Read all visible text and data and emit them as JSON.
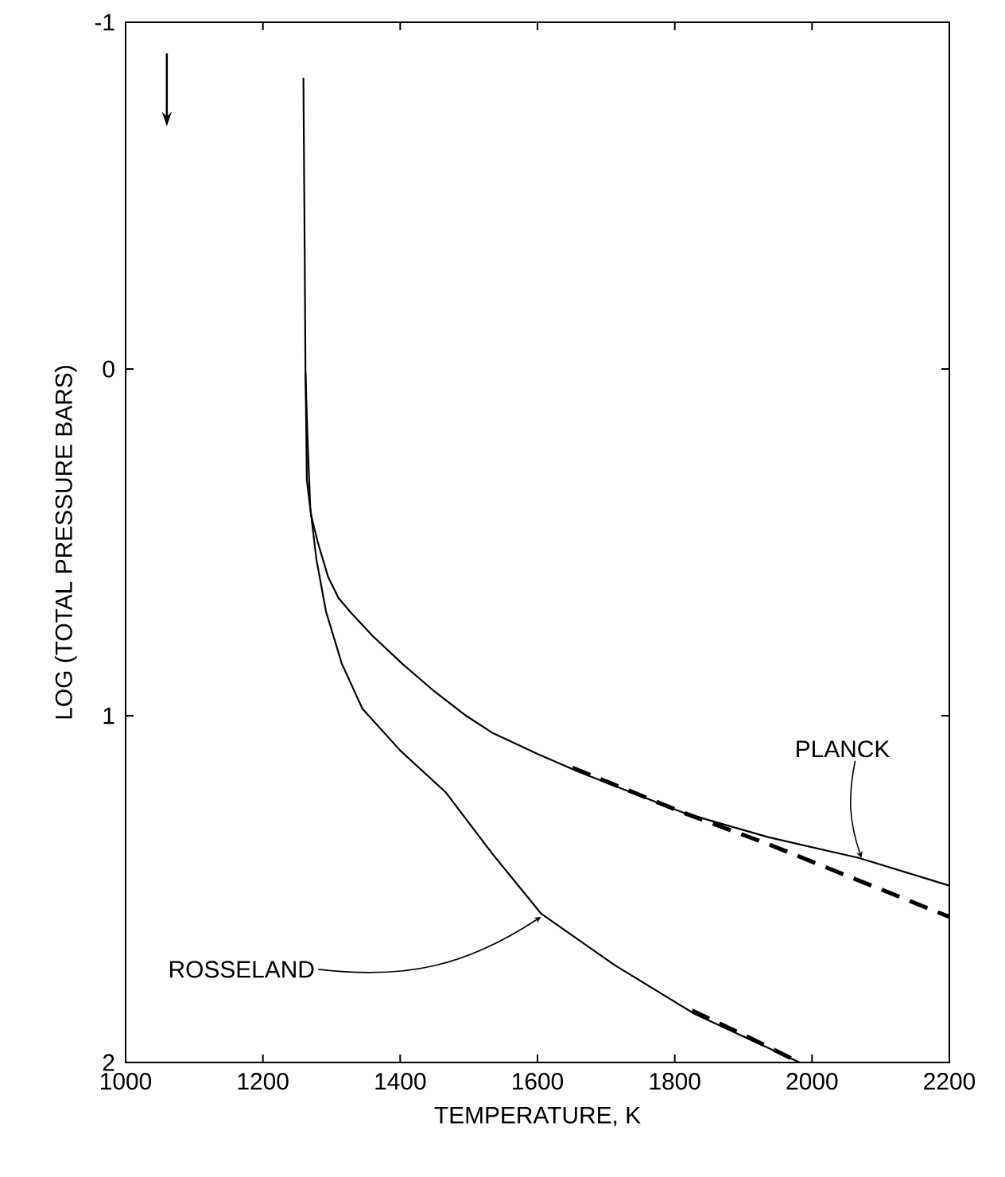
{
  "chart_data": {
    "type": "line",
    "xlabel": "TEMPERATURE, K",
    "ylabel": "LOG (TOTAL PRESSURE BARS)",
    "xlim": [
      1000,
      2200
    ],
    "ylim": [
      2,
      -1
    ],
    "xticks": [
      1000,
      1200,
      1400,
      1600,
      1800,
      2000,
      2200
    ],
    "yticks": [
      {
        "value": -1,
        "label": "-1"
      },
      0,
      1,
      2
    ],
    "grid": false,
    "marker": "none",
    "series": [
      {
        "color": "#000000",
        "line_style": "solid",
        "x": [
          1259,
          1261,
          1262,
          1263,
          1264,
          1270,
          1280,
          1295,
          1310,
          1327,
          1360,
          1403,
          1450,
          1496,
          1535,
          1600,
          1658,
          1813,
          1936,
          2068,
          2200
        ],
        "values": [
          -0.84,
          -0.3,
          0.01,
          0.15,
          0.32,
          0.42,
          0.5,
          0.6,
          0.66,
          0.7,
          0.77,
          0.85,
          0.93,
          1.0,
          1.05,
          1.11,
          1.16,
          1.28,
          1.35,
          1.41,
          1.49
        ]
      },
      {
        "color": "#000000",
        "line_style": "dashed",
        "x": [
          1651,
          1813,
          1936,
          2200
        ],
        "values": [
          1.15,
          1.28,
          1.37,
          1.58
        ]
      },
      {
        "color": "#000000",
        "line_style": "solid",
        "x": [
          1262,
          1265,
          1269,
          1278,
          1292,
          1315,
          1345,
          1400,
          1466,
          1535,
          1605,
          1713,
          1829,
          1982
        ],
        "values": [
          0.01,
          0.2,
          0.4,
          0.55,
          0.7,
          0.85,
          0.98,
          1.1,
          1.22,
          1.4,
          1.57,
          1.72,
          1.86,
          2.0
        ]
      },
      {
        "color": "#000000",
        "line_style": "dashed",
        "x": [
          1825,
          1900,
          1982
        ],
        "values": [
          1.85,
          1.92,
          2.0
        ]
      }
    ],
    "annotations": [
      {
        "text": "PLANCK",
        "x": 2072,
        "y": 1.41
      },
      {
        "text": "ROSSELAND",
        "x": 1605,
        "y": 1.58
      }
    ]
  }
}
